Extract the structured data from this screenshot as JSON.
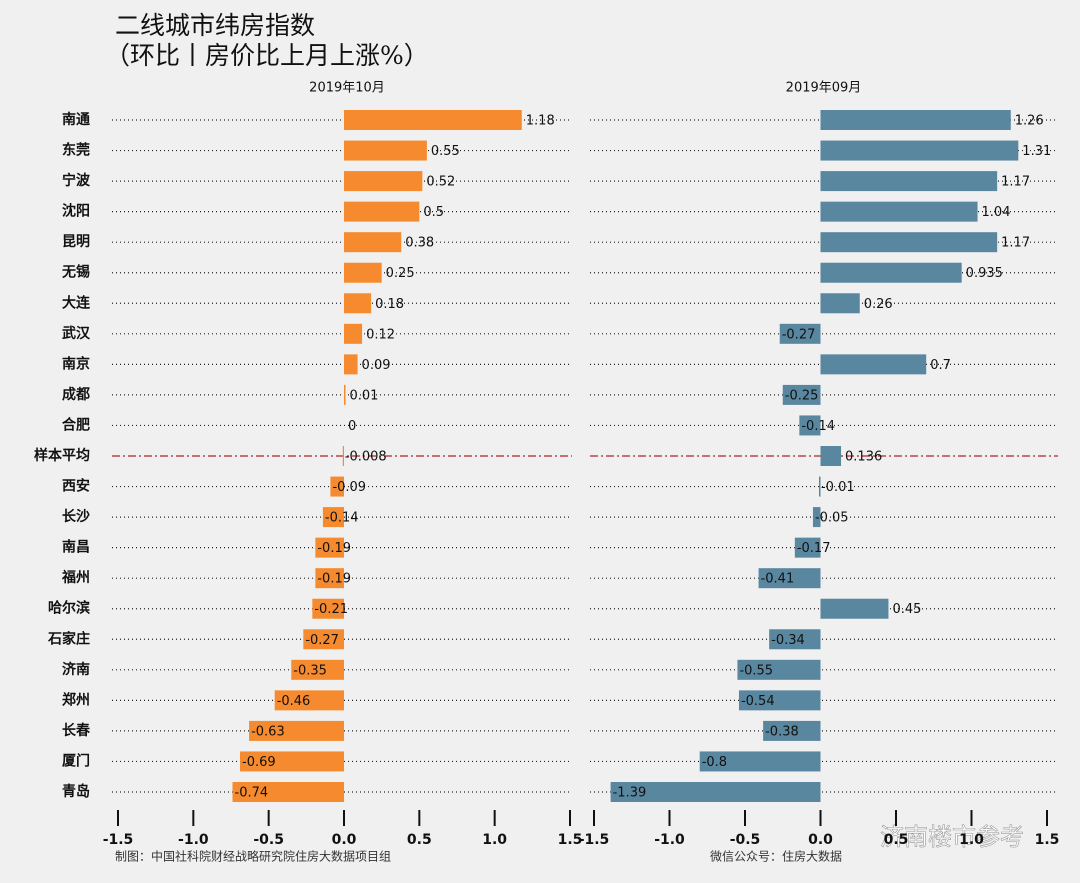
{
  "title": "二线城市纬房指数",
  "subtitle": "（环比丨房价比上月上涨%）",
  "footer_left": "制图：中国社科院财经战略研究院住房大数据项目组",
  "footer_right": "微信公众号：住房大数据",
  "watermark": "济南楼市参考",
  "chart_data": [
    {
      "type": "bar",
      "orientation": "horizontal",
      "title": "2019年10月",
      "color": "#f58a2e",
      "categories": [
        "南通",
        "东莞",
        "宁波",
        "沈阳",
        "昆明",
        "无锡",
        "大连",
        "武汉",
        "南京",
        "成都",
        "合肥",
        "样本平均",
        "西安",
        "长沙",
        "南昌",
        "福州",
        "哈尔滨",
        "石家庄",
        "济南",
        "郑州",
        "长春",
        "厦门",
        "青岛"
      ],
      "values": [
        1.18,
        0.55,
        0.52,
        0.5,
        0.38,
        0.25,
        0.18,
        0.12,
        0.09,
        0.01,
        0,
        -0.008,
        -0.09,
        -0.14,
        -0.19,
        -0.19,
        -0.21,
        -0.27,
        -0.35,
        -0.46,
        -0.63,
        -0.69,
        -0.74
      ],
      "xlim": [
        -1.5,
        1.5
      ],
      "xticks": [
        -1.5,
        {
          "value": -1,
          "label": "-1.0"
        },
        -0.5,
        {
          "value": 0,
          "label": "0.0"
        },
        0.5,
        {
          "value": 1,
          "label": "1.0"
        },
        1.5
      ],
      "reference_line": {
        "category_index": 11,
        "color": "#b22222",
        "style": "dashdot"
      }
    },
    {
      "type": "bar",
      "orientation": "horizontal",
      "title": "2019年09月",
      "color": "#5a87a0",
      "values": [
        1.26,
        1.31,
        1.17,
        1.04,
        1.17,
        0.935,
        0.26,
        -0.27,
        0.7,
        -0.25,
        -0.14,
        0.136,
        -0.01,
        -0.05,
        -0.17,
        -0.41,
        0.45,
        -0.34,
        -0.55,
        -0.54,
        -0.38,
        -0.8,
        -1.39
      ],
      "xlim": [
        -1.5,
        1.5
      ],
      "xticks": [
        -1.5,
        {
          "value": -1,
          "label": "-1.0"
        },
        -0.5,
        {
          "value": 0,
          "label": "0.0"
        },
        0.5,
        {
          "value": 1,
          "label": "1.0"
        },
        1.5
      ],
      "reference_line": {
        "category_index": 11,
        "color": "#b22222",
        "style": "dashdot"
      }
    }
  ]
}
